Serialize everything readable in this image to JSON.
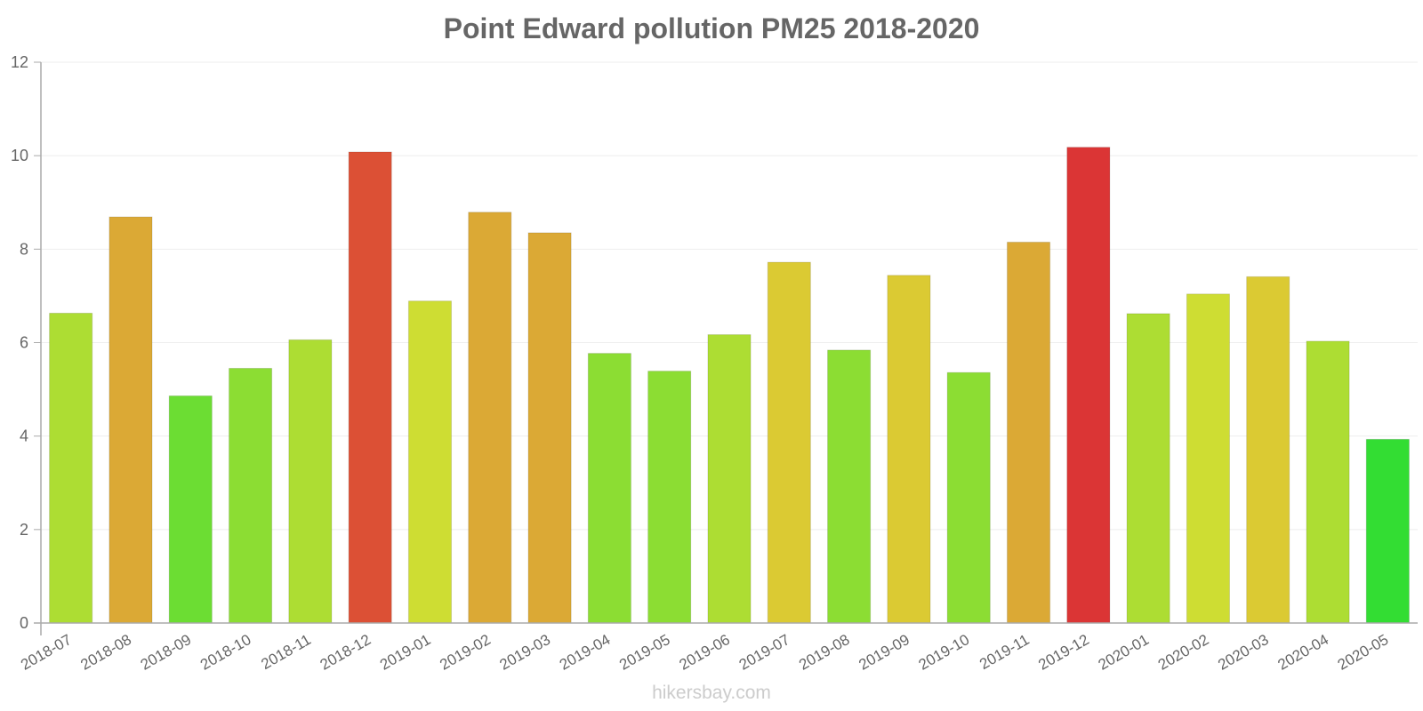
{
  "chart_data": {
    "type": "bar",
    "title": "Point Edward pollution PM25 2018-2020",
    "xlabel": "",
    "ylabel": "",
    "ylim": [
      0,
      12
    ],
    "yticks": [
      0,
      2,
      4,
      6,
      8,
      10,
      12
    ],
    "grid": true,
    "legend": null,
    "categories": [
      "2018-07",
      "2018-08",
      "2018-09",
      "2018-10",
      "2018-11",
      "2018-12",
      "2019-01",
      "2019-02",
      "2019-03",
      "2019-04",
      "2019-05",
      "2019-06",
      "2019-07",
      "2019-08",
      "2019-09",
      "2019-10",
      "2019-11",
      "2019-12",
      "2020-01",
      "2020-02",
      "2020-03",
      "2020-04",
      "2020-05"
    ],
    "values": [
      6.63,
      8.69,
      4.86,
      5.45,
      6.06,
      10.08,
      6.89,
      8.79,
      8.35,
      5.77,
      5.39,
      6.17,
      7.72,
      5.84,
      7.44,
      5.36,
      8.15,
      10.18,
      6.62,
      7.04,
      7.41,
      6.03,
      3.93
    ],
    "colors": [
      "#addd33",
      "#dba935",
      "#6cdd33",
      "#8cdd33",
      "#addd33",
      "#dc5035",
      "#cedd33",
      "#dba935",
      "#dba935",
      "#8cdd33",
      "#8cdd33",
      "#addd33",
      "#dbca33",
      "#8cdd33",
      "#dbca33",
      "#8cdd33",
      "#dba935",
      "#db3535",
      "#addd33",
      "#cedd33",
      "#dbca33",
      "#addd33",
      "#33dd33"
    ]
  },
  "watermark": "hikersbay.com",
  "style": {
    "text_color": "#666666",
    "axis_color": "#aaaaaa",
    "grid_color": "#eeeeee",
    "watermark_color": "#cccccc"
  }
}
